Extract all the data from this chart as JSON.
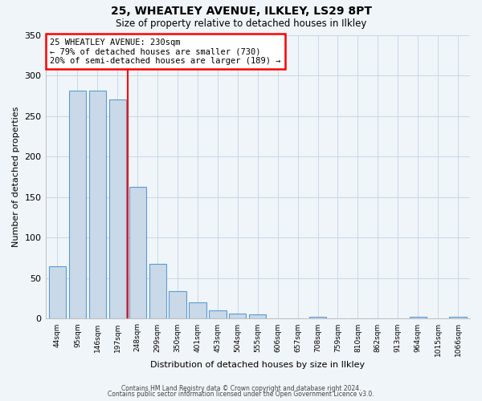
{
  "title": "25, WHEATLEY AVENUE, ILKLEY, LS29 8PT",
  "subtitle": "Size of property relative to detached houses in Ilkley",
  "xlabel": "Distribution of detached houses by size in Ilkley",
  "ylabel": "Number of detached properties",
  "bar_labels": [
    "44sqm",
    "95sqm",
    "146sqm",
    "197sqm",
    "248sqm",
    "299sqm",
    "350sqm",
    "401sqm",
    "453sqm",
    "504sqm",
    "555sqm",
    "606sqm",
    "657sqm",
    "708sqm",
    "759sqm",
    "810sqm",
    "862sqm",
    "913sqm",
    "964sqm",
    "1015sqm",
    "1066sqm"
  ],
  "bar_heights": [
    65,
    282,
    282,
    271,
    163,
    68,
    34,
    20,
    10,
    6,
    5,
    0,
    0,
    2,
    0,
    0,
    0,
    0,
    2,
    0,
    2
  ],
  "bar_color": "#c9d9e8",
  "bar_edge_color": "#5b9bd5",
  "vline_x": 3.5,
  "vline_color": "red",
  "annotation_text": "25 WHEATLEY AVENUE: 230sqm\n← 79% of detached houses are smaller (730)\n20% of semi-detached houses are larger (189) →",
  "annotation_box_color": "white",
  "annotation_box_edge": "red",
  "ylim": [
    0,
    350
  ],
  "yticks": [
    0,
    50,
    100,
    150,
    200,
    250,
    300,
    350
  ],
  "footer1": "Contains HM Land Registry data © Crown copyright and database right 2024.",
  "footer2": "Contains public sector information licensed under the Open Government Licence v3.0.",
  "bg_color": "#f0f5f9",
  "plot_bg_color": "#f0f5f9",
  "grid_color": "#c8d8e8"
}
